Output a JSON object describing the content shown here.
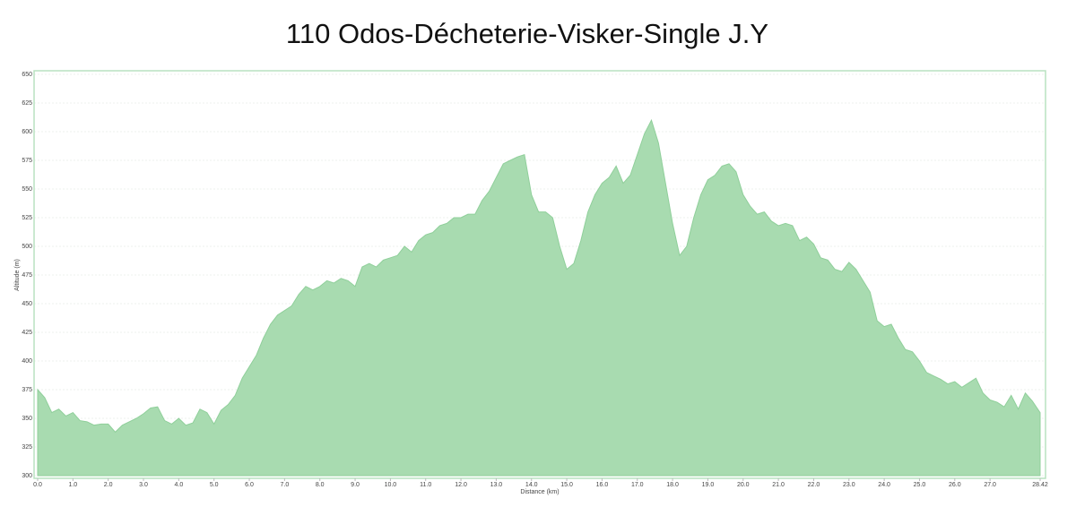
{
  "chart_data": {
    "type": "area",
    "title": "110 Odos-Décheterie-Visker-Single J.Y",
    "x_label": "Distance (km)",
    "y_label": "Altitude (m)",
    "color": "#a8dbb0",
    "line_color": "#8fcf9a",
    "grid": true,
    "xlim": [
      0,
      28.42
    ],
    "ylim": [
      300,
      650
    ],
    "xticks": [
      {
        "value": 0,
        "label": "0.0"
      },
      {
        "value": 1,
        "label": "1.0"
      },
      {
        "value": 2,
        "label": "2.0"
      },
      {
        "value": 3,
        "label": "3.0"
      },
      {
        "value": 4,
        "label": "4.0"
      },
      {
        "value": 5,
        "label": "5.0"
      },
      {
        "value": 6,
        "label": "6.0"
      },
      {
        "value": 7,
        "label": "7.0"
      },
      {
        "value": 8,
        "label": "8.0"
      },
      {
        "value": 9,
        "label": "9.0"
      },
      {
        "value": 10,
        "label": "10.0"
      },
      {
        "value": 11,
        "label": "11.0"
      },
      {
        "value": 12,
        "label": "12.0"
      },
      {
        "value": 13,
        "label": "13.0"
      },
      {
        "value": 14,
        "label": "14.0"
      },
      {
        "value": 15,
        "label": "15.0"
      },
      {
        "value": 16,
        "label": "16.0"
      },
      {
        "value": 17,
        "label": "17.0"
      },
      {
        "value": 18,
        "label": "18.0"
      },
      {
        "value": 19,
        "label": "19.0"
      },
      {
        "value": 20,
        "label": "20.0"
      },
      {
        "value": 21,
        "label": "21.0"
      },
      {
        "value": 22,
        "label": "22.0"
      },
      {
        "value": 23,
        "label": "23.0"
      },
      {
        "value": 24,
        "label": "24.0"
      },
      {
        "value": 25,
        "label": "25.0"
      },
      {
        "value": 26,
        "label": "26.0"
      },
      {
        "value": 27,
        "label": "27.0"
      },
      28.42
    ],
    "yticks": [
      300,
      325,
      350,
      375,
      400,
      425,
      450,
      475,
      500,
      525,
      550,
      575,
      600,
      625,
      650
    ],
    "x": [
      0,
      0.2,
      0.4,
      0.6,
      0.8,
      1,
      1.2,
      1.4,
      1.6,
      1.8,
      2,
      2.2,
      2.4,
      2.6,
      2.8,
      3,
      3.2,
      3.4,
      3.6,
      3.8,
      4,
      4.2,
      4.4,
      4.6,
      4.8,
      5,
      5.2,
      5.4,
      5.6,
      5.8,
      6,
      6.2,
      6.4,
      6.6,
      6.8,
      7,
      7.2,
      7.4,
      7.6,
      7.8,
      8,
      8.2,
      8.4,
      8.6,
      8.8,
      9,
      9.2,
      9.4,
      9.6,
      9.8,
      10,
      10.2,
      10.4,
      10.6,
      10.8,
      11,
      11.2,
      11.4,
      11.6,
      11.8,
      12,
      12.2,
      12.4,
      12.6,
      12.8,
      13,
      13.2,
      13.4,
      13.6,
      13.8,
      14,
      14.2,
      14.4,
      14.6,
      14.8,
      15,
      15.2,
      15.4,
      15.6,
      15.8,
      16,
      16.2,
      16.4,
      16.6,
      16.8,
      17,
      17.2,
      17.4,
      17.6,
      17.8,
      18,
      18.2,
      18.4,
      18.6,
      18.8,
      19,
      19.2,
      19.4,
      19.6,
      19.8,
      20,
      20.2,
      20.4,
      20.6,
      20.8,
      21,
      21.2,
      21.4,
      21.6,
      21.8,
      22,
      22.2,
      22.4,
      22.6,
      22.8,
      23,
      23.2,
      23.4,
      23.6,
      23.8,
      24,
      24.2,
      24.4,
      24.6,
      24.8,
      25,
      25.2,
      25.4,
      25.6,
      25.8,
      26,
      26.2,
      26.4,
      26.6,
      26.8,
      27,
      27.2,
      27.4,
      27.6,
      27.8,
      28,
      28.2,
      28.42
    ],
    "values": [
      375,
      368,
      355,
      358,
      352,
      355,
      348,
      347,
      344,
      345,
      345,
      338,
      344,
      347,
      350,
      354,
      359,
      360,
      348,
      345,
      350,
      344,
      346,
      358,
      355,
      345,
      357,
      362,
      370,
      385,
      395,
      405,
      420,
      432,
      440,
      444,
      448,
      458,
      465,
      462,
      465,
      470,
      468,
      472,
      470,
      465,
      482,
      485,
      482,
      488,
      490,
      492,
      500,
      495,
      505,
      510,
      512,
      518,
      520,
      525,
      525,
      528,
      528,
      540,
      548,
      560,
      572,
      575,
      578,
      580,
      545,
      530,
      530,
      525,
      500,
      480,
      485,
      505,
      530,
      545,
      555,
      560,
      570,
      555,
      562,
      580,
      598,
      610,
      590,
      555,
      520,
      492,
      500,
      525,
      545,
      558,
      562,
      570,
      572,
      565,
      545,
      535,
      528,
      530,
      522,
      518,
      520,
      518,
      505,
      508,
      502,
      490,
      488,
      480,
      478,
      486,
      480,
      470,
      460,
      435,
      430,
      432,
      420,
      410,
      408,
      400,
      390,
      387,
      384,
      380,
      382,
      377,
      381,
      385,
      372,
      366,
      364,
      360,
      370,
      358,
      372,
      365,
      355
    ]
  }
}
